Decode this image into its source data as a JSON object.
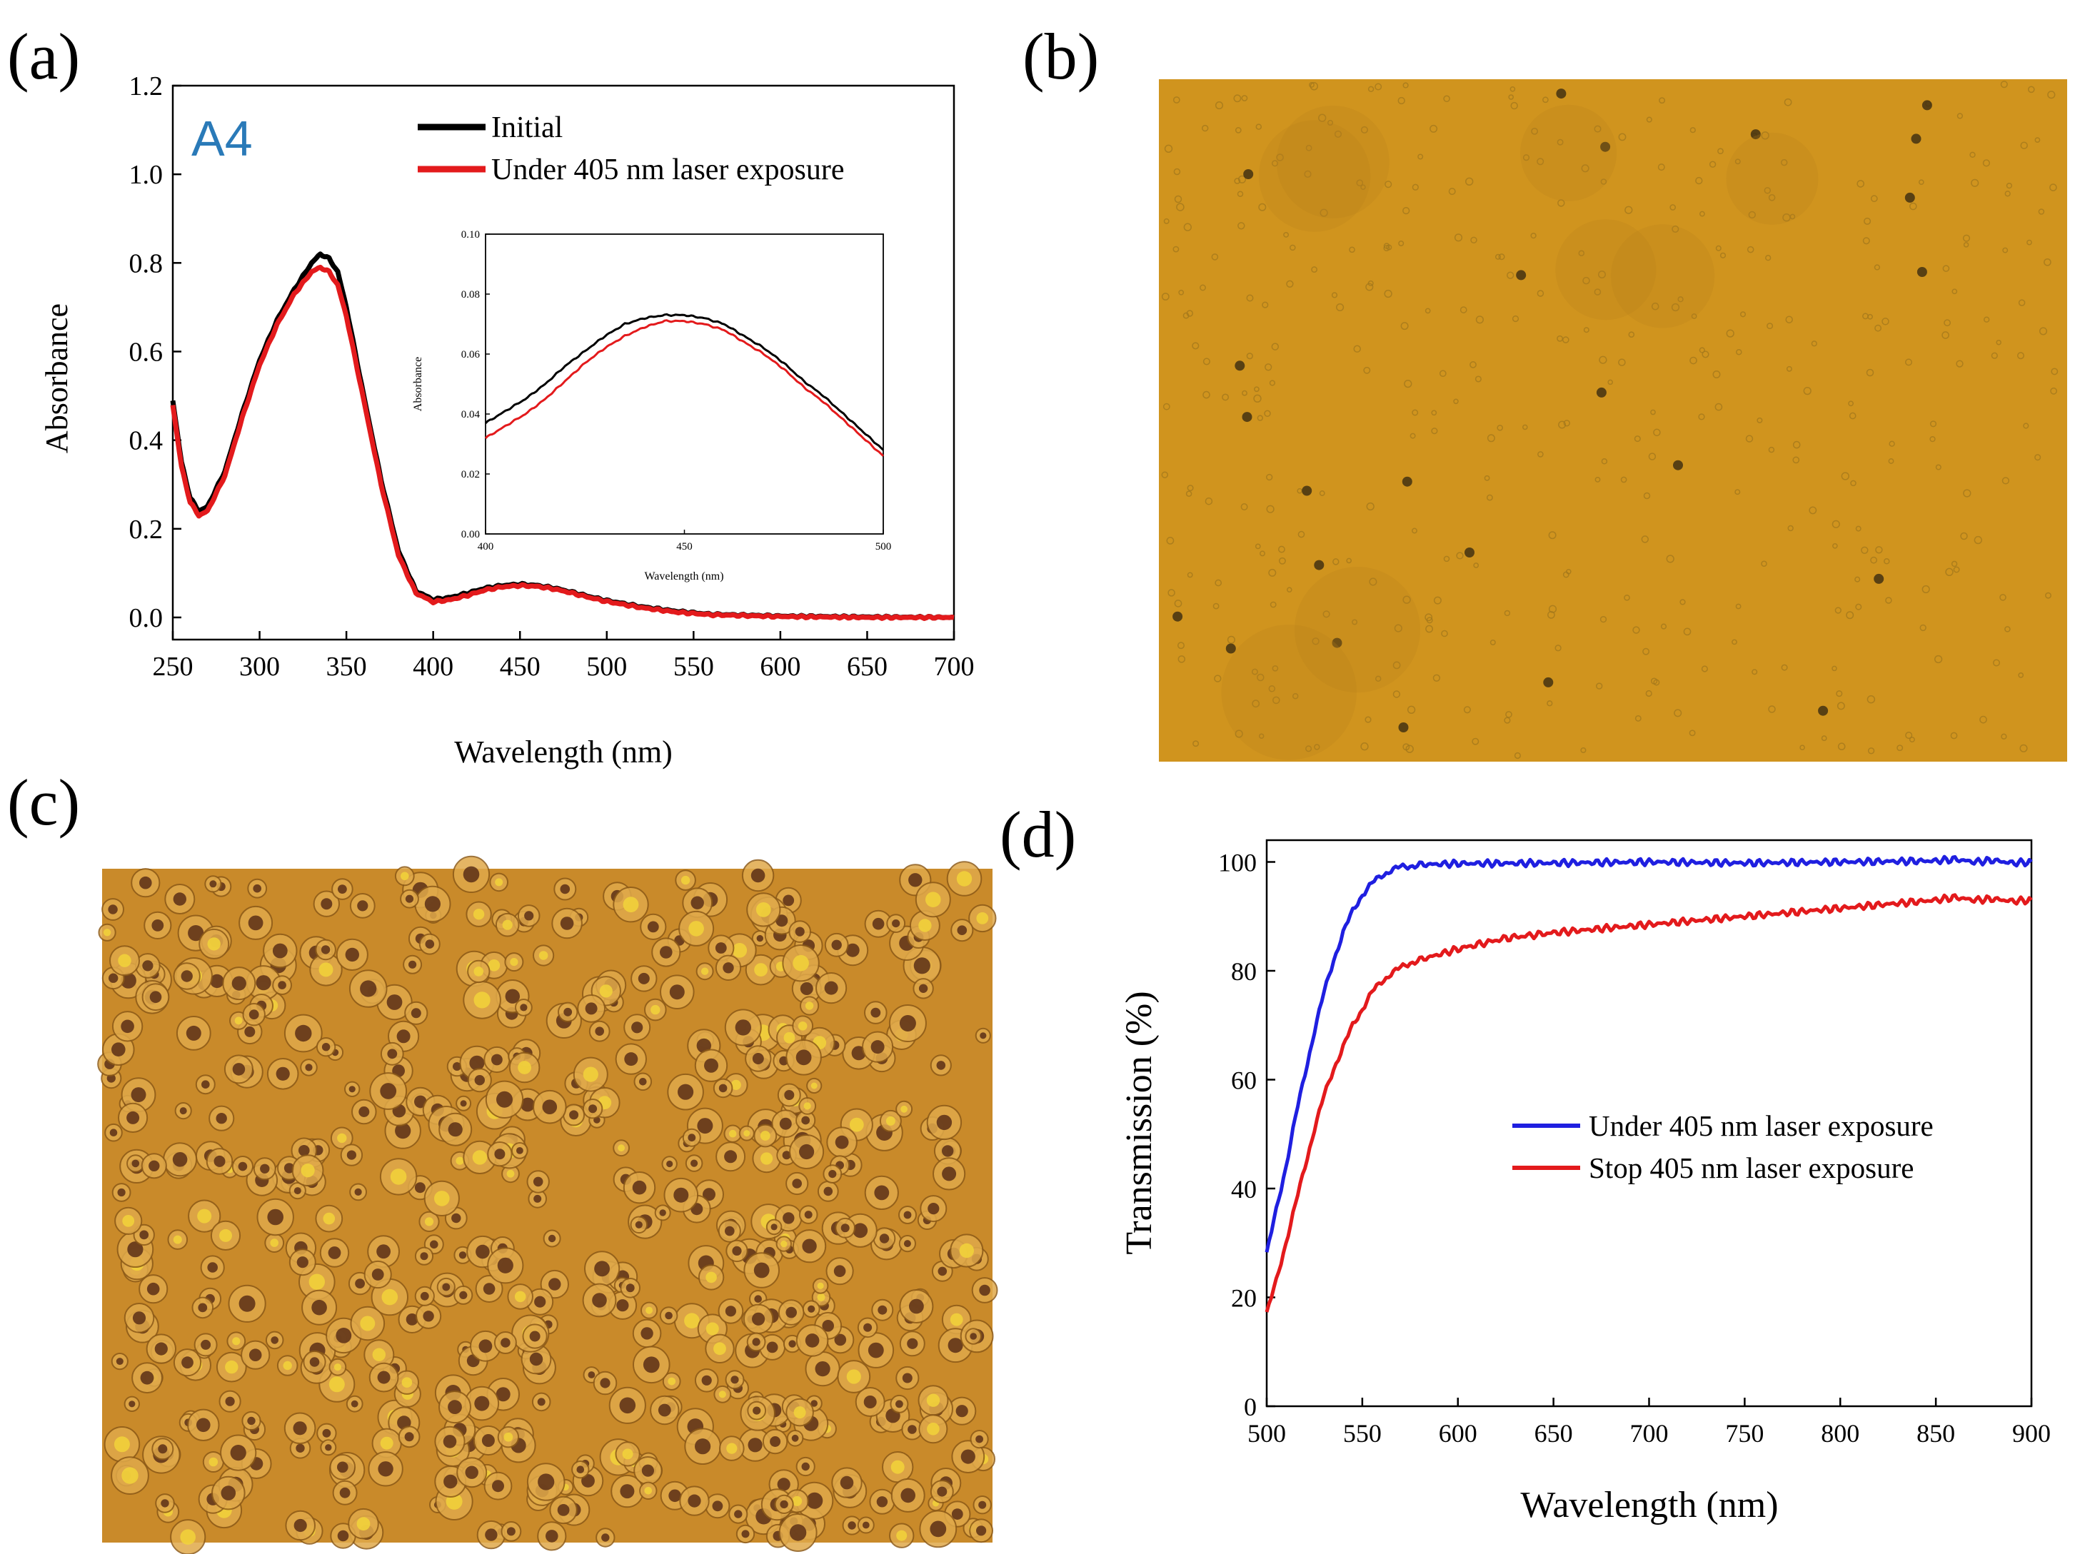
{
  "panel_labels": {
    "a": "(a)",
    "b": "(b)",
    "c": "(c)",
    "d": "(d)"
  },
  "colors": {
    "black": "#000000",
    "red": "#e31a1c",
    "blue": "#1f1fe0",
    "micro_b": "#d0941e",
    "micro_c": "#c98a2a"
  },
  "images": {
    "b": "Optical micrograph of sample before laser exposure (uniform amber field with sparse small droplets)",
    "c": "Optical micrograph of sample under laser exposure (dense field of droplets)"
  },
  "chart_data": [
    {
      "id": "a",
      "type": "line",
      "title": "",
      "annotation": "A4",
      "xlabel": "Wavelength (nm)",
      "ylabel": "Absorbance",
      "xlim": [
        250,
        700
      ],
      "ylim": [
        -0.05,
        1.2
      ],
      "xticks": [
        250,
        300,
        350,
        400,
        450,
        500,
        550,
        600,
        650,
        700
      ],
      "yticks": [
        0.0,
        0.2,
        0.4,
        0.6,
        0.8,
        1.0,
        1.2
      ],
      "xtick_labels": [
        "250",
        "300",
        "350",
        "400",
        "450",
        "500",
        "550",
        "600",
        "650",
        "700"
      ],
      "ytick_labels": [
        "0.0",
        "0.2",
        "0.4",
        "0.6",
        "0.8",
        "1.0",
        "1.2"
      ],
      "legend": "top-right",
      "series": [
        {
          "name": "Initial",
          "color": "#000000",
          "x": [
            250,
            255,
            260,
            265,
            270,
            280,
            290,
            300,
            310,
            320,
            330,
            335,
            340,
            345,
            350,
            360,
            370,
            380,
            390,
            400,
            410,
            420,
            430,
            440,
            450,
            460,
            470,
            480,
            490,
            500,
            520,
            540,
            560,
            600,
            650,
            700
          ],
          "y": [
            0.49,
            0.35,
            0.27,
            0.24,
            0.25,
            0.33,
            0.46,
            0.58,
            0.67,
            0.74,
            0.8,
            0.82,
            0.81,
            0.78,
            0.7,
            0.5,
            0.31,
            0.15,
            0.06,
            0.04,
            0.045,
            0.055,
            0.066,
            0.072,
            0.075,
            0.072,
            0.066,
            0.057,
            0.047,
            0.038,
            0.024,
            0.014,
            0.007,
            0.003,
            0.001,
            0.0
          ]
        },
        {
          "name": "Under 405 nm laser exposure",
          "color": "#e31a1c",
          "x": [
            250,
            255,
            260,
            265,
            270,
            280,
            290,
            300,
            310,
            320,
            330,
            335,
            340,
            345,
            350,
            360,
            370,
            380,
            390,
            400,
            410,
            420,
            430,
            440,
            450,
            460,
            470,
            480,
            490,
            500,
            520,
            540,
            560,
            600,
            650,
            700
          ],
          "y": [
            0.48,
            0.34,
            0.26,
            0.23,
            0.24,
            0.32,
            0.45,
            0.57,
            0.66,
            0.73,
            0.78,
            0.79,
            0.78,
            0.75,
            0.68,
            0.49,
            0.3,
            0.14,
            0.055,
            0.035,
            0.04,
            0.05,
            0.062,
            0.069,
            0.072,
            0.07,
            0.064,
            0.055,
            0.045,
            0.036,
            0.022,
            0.012,
            0.006,
            0.002,
            0.0,
            0.0
          ]
        }
      ],
      "inset": {
        "xlabel": "Wavelength (nm)",
        "ylabel": "Absorbance",
        "xlim": [
          400,
          500
        ],
        "ylim": [
          0.0,
          0.1
        ],
        "xtick_labels": [
          "400",
          "450",
          "500"
        ],
        "ytick_labels": [
          "0.00",
          "0.02",
          "0.04",
          "0.06",
          "0.08",
          "0.10"
        ],
        "series": [
          {
            "name": "Initial",
            "color": "#000000",
            "x": [
              400,
              405,
              410,
              415,
              420,
              425,
              430,
              435,
              440,
              445,
              450,
              455,
              460,
              465,
              470,
              475,
              480,
              485,
              490,
              495,
              500
            ],
            "y": [
              0.037,
              0.041,
              0.045,
              0.05,
              0.056,
              0.061,
              0.066,
              0.07,
              0.072,
              0.073,
              0.073,
              0.072,
              0.07,
              0.066,
              0.062,
              0.057,
              0.051,
              0.046,
              0.04,
              0.034,
              0.028
            ]
          },
          {
            "name": "Under 405 nm laser exposure",
            "color": "#e31a1c",
            "x": [
              400,
              405,
              410,
              415,
              420,
              425,
              430,
              435,
              440,
              445,
              450,
              455,
              460,
              465,
              470,
              475,
              480,
              485,
              490,
              495,
              500
            ],
            "y": [
              0.032,
              0.036,
              0.04,
              0.045,
              0.051,
              0.057,
              0.062,
              0.066,
              0.069,
              0.071,
              0.071,
              0.07,
              0.068,
              0.064,
              0.06,
              0.055,
              0.049,
              0.044,
              0.038,
              0.032,
              0.026
            ]
          }
        ]
      }
    },
    {
      "id": "d",
      "type": "line",
      "title": "",
      "xlabel": "Wavelength (nm)",
      "ylabel": "Transmission (%)",
      "xlim": [
        500,
        900
      ],
      "ylim": [
        0,
        104
      ],
      "xticks": [
        500,
        550,
        600,
        650,
        700,
        750,
        800,
        850,
        900
      ],
      "yticks": [
        0,
        20,
        40,
        60,
        80,
        100
      ],
      "xtick_labels": [
        "500",
        "550",
        "600",
        "650",
        "700",
        "750",
        "800",
        "850",
        "900"
      ],
      "ytick_labels": [
        "0",
        "20",
        "40",
        "60",
        "80",
        "100"
      ],
      "legend": "middle-right",
      "series": [
        {
          "name": "Under 405 nm laser exposure",
          "color": "#1f1fe0",
          "x": [
            500,
            505,
            510,
            515,
            520,
            525,
            530,
            535,
            540,
            545,
            550,
            555,
            560,
            565,
            570,
            575,
            580,
            590,
            600,
            650,
            700,
            750,
            800,
            850,
            860,
            870,
            880,
            890,
            900
          ],
          "y": [
            28,
            36,
            44,
            53,
            61,
            69,
            76,
            82,
            87,
            91,
            94,
            96,
            97.5,
            98.5,
            99,
            99.3,
            99.5,
            99.6,
            99.7,
            99.8,
            100,
            99.8,
            100,
            100.2,
            100.5,
            100,
            100.3,
            99.8,
            100
          ]
        },
        {
          "name": "Stop 405 nm laser exposure",
          "color": "#e31a1c",
          "x": [
            500,
            505,
            510,
            515,
            520,
            525,
            530,
            535,
            540,
            545,
            550,
            555,
            560,
            565,
            570,
            575,
            580,
            590,
            600,
            625,
            650,
            700,
            750,
            800,
            850,
            860,
            870,
            880,
            890,
            900
          ],
          "y": [
            17,
            23,
            30,
            37,
            44,
            51,
            57,
            62,
            66,
            70,
            73,
            76,
            78,
            79.5,
            80.5,
            81.5,
            82,
            83,
            84,
            86,
            87,
            88.5,
            90,
            91.5,
            93,
            93.5,
            93,
            93.2,
            92.8,
            93
          ]
        }
      ]
    }
  ]
}
